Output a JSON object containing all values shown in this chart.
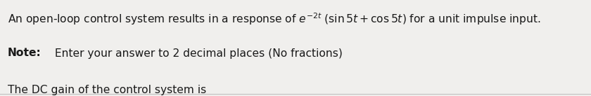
{
  "bg_color": "#f0efed",
  "text_color": "#1a1a1a",
  "line2_bold": "Note:",
  "line2_rest": " Enter your answer to 2 decimal places (No fractions)",
  "line3": "The DC gain of the control system is",
  "bottom_line_color": "#c0c0c0",
  "figsize": [
    8.4,
    1.37
  ],
  "dpi": 100,
  "fontsize": 11.2
}
